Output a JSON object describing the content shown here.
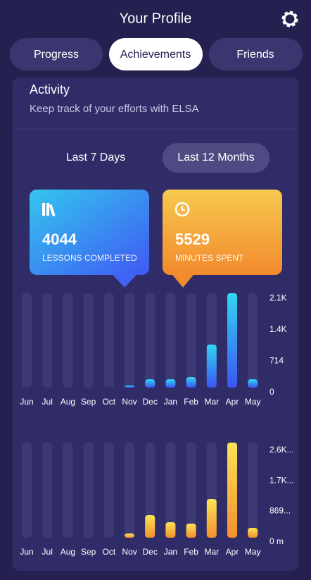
{
  "header": {
    "title": "Your Profile"
  },
  "tabs": [
    "Progress",
    "Achievements",
    "Friends"
  ],
  "activity": {
    "title": "Activity",
    "subtitle": "Keep track of your efforts with ELSA"
  },
  "ranges": [
    "Last 7 Days",
    "Last 12 Months"
  ],
  "cards": [
    {
      "value": "4044",
      "label": "LESSONS COMPLETED"
    },
    {
      "value": "5529",
      "label": "MINUTES SPENT"
    }
  ],
  "chart_data": [
    {
      "type": "bar",
      "categories": [
        "Jun",
        "Jul",
        "Aug",
        "Sep",
        "Oct",
        "Nov",
        "Dec",
        "Jan",
        "Feb",
        "Mar",
        "Apr",
        "May"
      ],
      "values": [
        0,
        0,
        0,
        0,
        0,
        50,
        190,
        190,
        240,
        980,
        2150,
        190
      ],
      "ylim": [
        0,
        2150
      ],
      "yticks": [
        {
          "value": 2142,
          "label": "2.1K"
        },
        {
          "value": 1428,
          "label": "1.4K"
        },
        714,
        0
      ],
      "color": [
        "#3b55f2",
        "#32d6f2"
      ]
    },
    {
      "type": "bar",
      "categories": [
        "Jun",
        "Jul",
        "Aug",
        "Sep",
        "Oct",
        "Nov",
        "Dec",
        "Jan",
        "Feb",
        "Mar",
        "Apr",
        "May"
      ],
      "values": [
        0,
        0,
        0,
        0,
        0,
        120,
        640,
        440,
        400,
        1100,
        2700,
        280
      ],
      "ylim": [
        0,
        2700
      ],
      "yticks": [
        {
          "value": 2607,
          "label": "2.6K..."
        },
        {
          "value": 1738,
          "label": "1.7K..."
        },
        {
          "value": 869,
          "label": "869..."
        },
        {
          "value": 0,
          "label": "0 m"
        }
      ],
      "color": [
        "#f3902e",
        "#fde356"
      ]
    }
  ]
}
